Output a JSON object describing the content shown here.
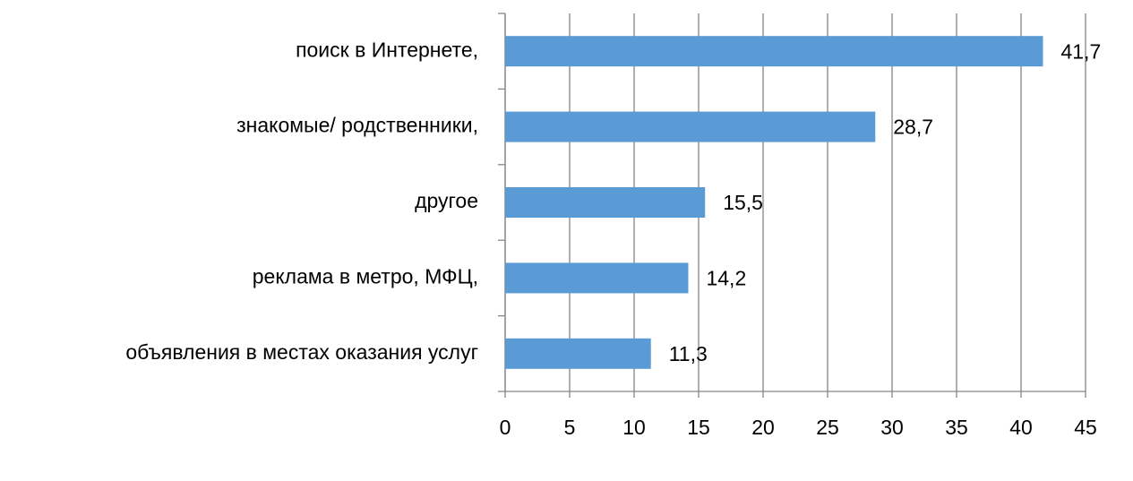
{
  "chart_data": {
    "type": "barh",
    "categories": [
      "поиск в Интернете,",
      "знакомые/ родственники,",
      "другое",
      "реклама в метро, МФЦ,",
      "объявления в местах оказания услуг"
    ],
    "values": [
      41.7,
      28.7,
      15.5,
      14.2,
      11.3
    ],
    "value_labels": [
      "41,7",
      "28,7",
      "15,5",
      "14,2",
      "11,3"
    ],
    "color": "#5b9bd5",
    "xlim": [
      0,
      45
    ],
    "xticks": [
      0,
      5,
      10,
      15,
      20,
      25,
      30,
      35,
      40,
      45
    ],
    "grid": true
  }
}
